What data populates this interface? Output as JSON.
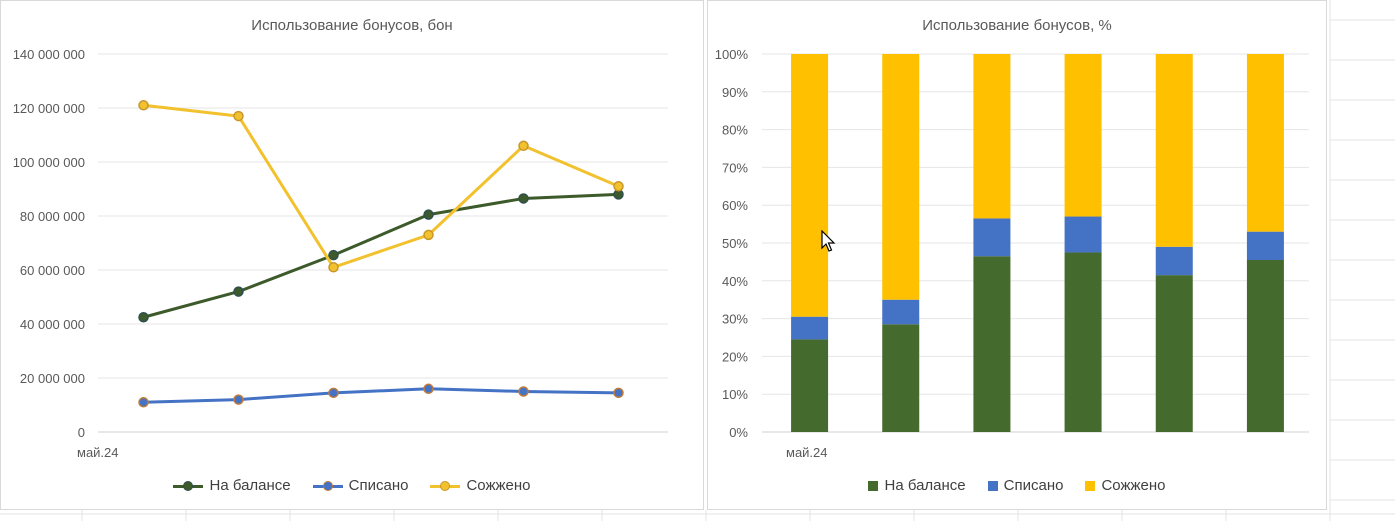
{
  "chart_data": [
    {
      "type": "line",
      "title": "Использование бонусов, бон",
      "x": [
        "май.24",
        "",
        "",
        "",
        "",
        ""
      ],
      "ylim": [
        0,
        140000000
      ],
      "yticks": [
        "140 000 000",
        "120 000 000",
        "100 000 000",
        "80 000 000",
        "60 000 000",
        "40 000 000",
        "20 000 000",
        "0"
      ],
      "grid": true,
      "legend_position": "bottom",
      "series": [
        {
          "name": "На балансе",
          "color": "#3d5a2a",
          "values": [
            42500000,
            52000000,
            65500000,
            80500000,
            86500000,
            88000000
          ]
        },
        {
          "name": "Списано",
          "color": "#4472c4",
          "values": [
            11000000,
            12000000,
            14500000,
            16000000,
            15000000,
            14500000
          ]
        },
        {
          "name": "Сожжено",
          "color": "#f2c12e",
          "values": [
            121000000,
            117000000,
            61000000,
            73000000,
            106000000,
            91000000
          ]
        }
      ]
    },
    {
      "type": "bar",
      "stacked": true,
      "title": "Использование бонусов, %",
      "categories": [
        "май.24",
        "",
        "",
        "",
        "",
        ""
      ],
      "ylim": [
        0,
        100
      ],
      "yticks": [
        "100%",
        "90%",
        "80%",
        "70%",
        "60%",
        "50%",
        "40%",
        "30%",
        "20%",
        "10%",
        "0%"
      ],
      "grid": true,
      "legend_position": "bottom",
      "series": [
        {
          "name": "На балансе",
          "color": "#446a2d",
          "values": [
            24.5,
            28.5,
            46.5,
            47.5,
            41.5,
            45.5
          ]
        },
        {
          "name": "Списано",
          "color": "#4472c4",
          "values": [
            6,
            6.5,
            10,
            9.5,
            7.5,
            7.5
          ]
        },
        {
          "name": "Сожжено",
          "color": "#ffc000",
          "values": [
            69.5,
            65,
            43.5,
            43,
            51,
            47
          ]
        }
      ]
    }
  ]
}
